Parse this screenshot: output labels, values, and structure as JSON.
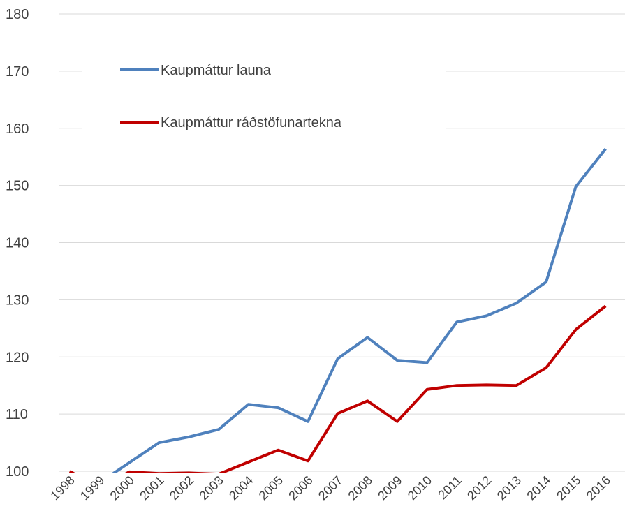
{
  "chart_data": {
    "type": "line",
    "categories": [
      "1998",
      "1999",
      "2000",
      "2001",
      "2002",
      "2003",
      "2004",
      "2005",
      "2006",
      "2007",
      "2008",
      "2009",
      "2010",
      "2011",
      "2012",
      "2013",
      "2014",
      "2015",
      "2016"
    ],
    "series": [
      {
        "name": "Kaupmáttur launa",
        "color": "#4f81bd",
        "values": [
          97,
          98,
          101.5,
          105,
          106,
          107.3,
          111.7,
          111.1,
          108.7,
          119.7,
          123.4,
          119.4,
          119.0,
          126.1,
          127.2,
          129.4,
          133.1,
          149.8,
          156.4
        ]
      },
      {
        "name": "Kaupmáttur ráðstöfunartekna",
        "color": "#c00000",
        "values": [
          100,
          97,
          99.9,
          99.6,
          99.7,
          99.5,
          101.6,
          103.7,
          101.8,
          110.1,
          112.3,
          108.7,
          114.3,
          115.0,
          115.1,
          115.0,
          118.1,
          124.8,
          128.9
        ]
      }
    ],
    "ylim": [
      100,
      180
    ],
    "yticks": [
      100,
      110,
      120,
      130,
      140,
      150,
      160,
      170,
      180
    ],
    "grid": true
  }
}
